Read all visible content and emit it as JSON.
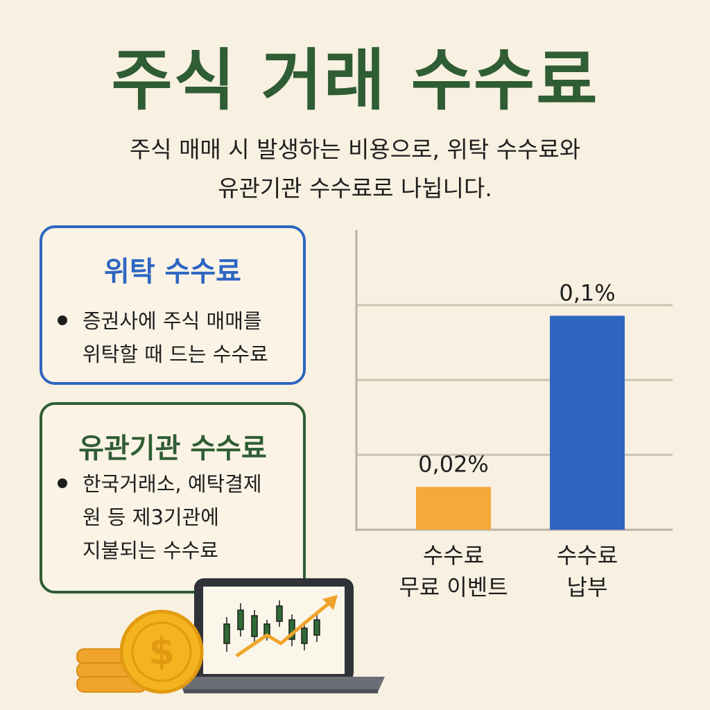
{
  "title": "주식 거래 수수료",
  "subtitle": "주식 매매 시 발생하는 비용으로, 위탁 수수료와\n유관기관 수수료로 나뉩니다.",
  "cards": [
    {
      "title": "위탁 수수료",
      "bullet": "증권사에 주식 매매를\n위탁할 때 드는 수수료",
      "accent": "#2e66c2"
    },
    {
      "title": "유관기관 수수료",
      "bullet": "한국거래소, 예탁결제\n원 등 제3기관에\n지불되는 수수료",
      "accent": "#2f5d34"
    }
  ],
  "chart_data": {
    "type": "bar",
    "categories": [
      [
        "수수료",
        "무료 이벤트"
      ],
      [
        "수수료",
        "납부"
      ]
    ],
    "values": [
      0.02,
      0.1
    ],
    "value_labels": [
      "0,02%",
      "0,1%"
    ],
    "colors": [
      "#f6a83a",
      "#2e66c2"
    ],
    "ylim": [
      0,
      0.14
    ],
    "grid": true
  },
  "illustration": {
    "coin_symbol": "$",
    "coin_color": "#f3b41f",
    "laptop_icon": "laptop-with-candlestick-chart-icon"
  }
}
